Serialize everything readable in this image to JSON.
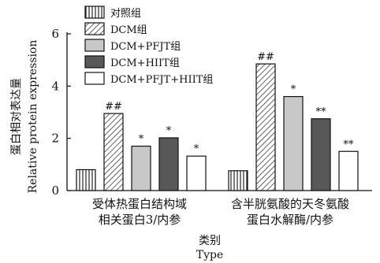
{
  "chart_data": {
    "type": "bar",
    "categories": [
      [
        "受体热蛋白结构域",
        "相关蛋白3/内参"
      ],
      [
        "含半胱氨酸的天冬氨酸",
        "蛋白水解酶/内参"
      ]
    ],
    "series": [
      {
        "name": "对照组",
        "values": [
          0.8,
          0.76
        ],
        "pattern": "vertical",
        "annotations": [
          "",
          ""
        ]
      },
      {
        "name": "DCM组",
        "values": [
          2.95,
          4.85
        ],
        "pattern": "diagonal",
        "annotations": [
          "##",
          "##"
        ]
      },
      {
        "name": "DCM+PFJT组",
        "values": [
          1.7,
          3.6
        ],
        "pattern": "lightgray",
        "annotations": [
          "*",
          "*"
        ]
      },
      {
        "name": "DCM+HIIT组",
        "values": [
          2.02,
          2.75
        ],
        "pattern": "darkgray",
        "annotations": [
          "*",
          "**"
        ]
      },
      {
        "name": "DCM+PFJT+HIIT组",
        "values": [
          1.32,
          1.5
        ],
        "pattern": "white",
        "annotations": [
          "*",
          "**"
        ]
      }
    ],
    "ylim": [
      0,
      6
    ],
    "yticks": [
      0,
      2,
      4,
      6
    ],
    "ylabel_cn": "蛋白相对表达量",
    "ylabel_en": "Relative protein expression",
    "xlabel_cn": "类别",
    "xlabel_en": "Type",
    "legend_position": "top-left",
    "grid": false,
    "colors": {
      "light": "#c8c8c8",
      "dark": "#585858",
      "stroke": "#111111"
    }
  }
}
